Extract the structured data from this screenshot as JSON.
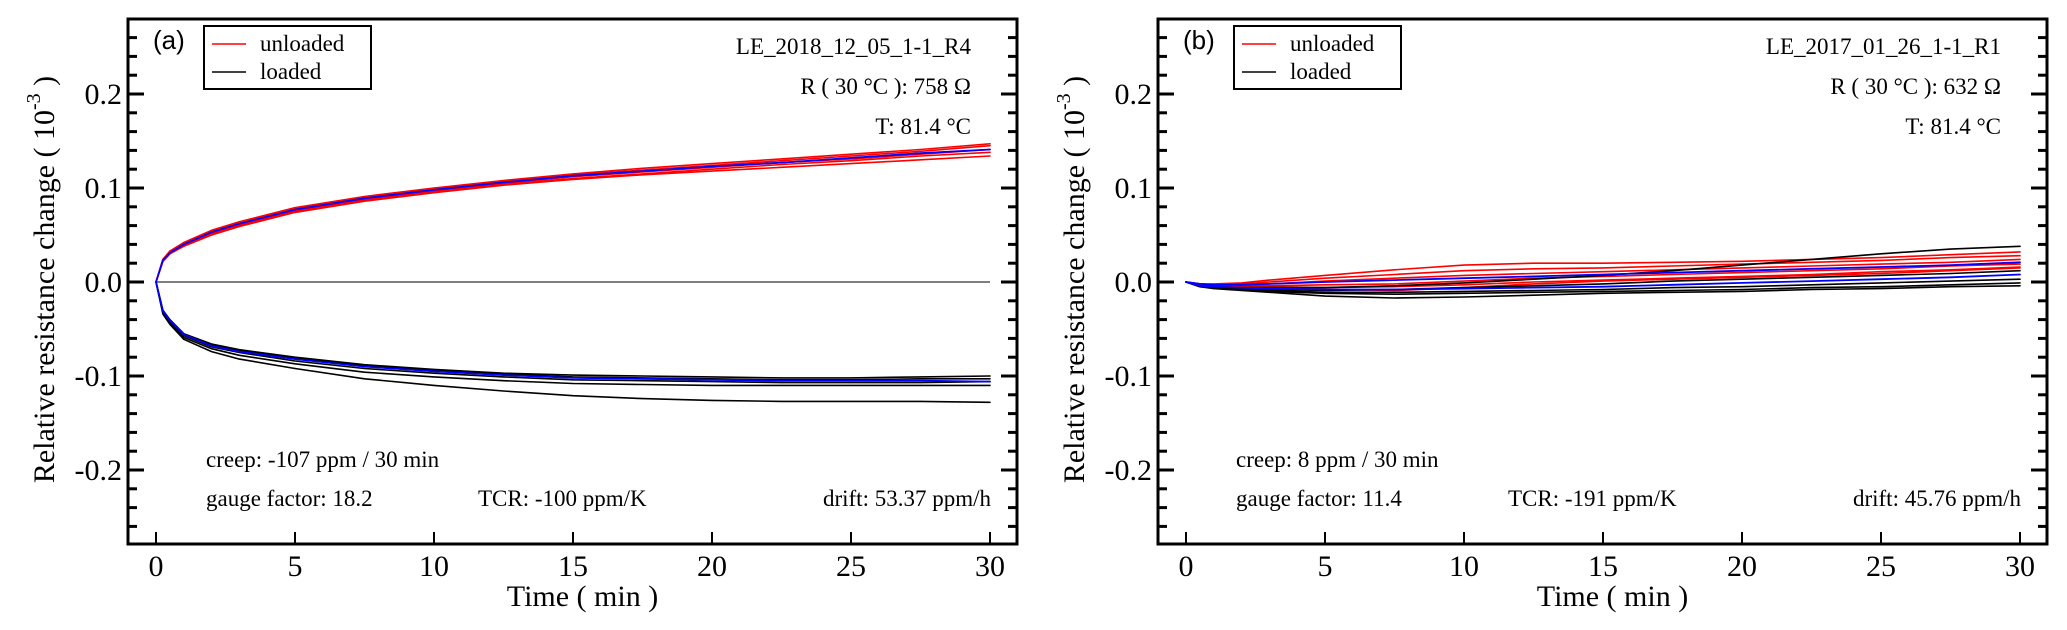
{
  "chart_data": [
    {
      "type": "line",
      "panel_label": "(a)",
      "sample_id": "LE_2018_12_05_1-1_R4",
      "resistance": "R ( 30 °C ): 758 Ω",
      "temperature": "T: 81.4 °C",
      "creep": "creep: -107 ppm / 30 min",
      "gauge_factor": "gauge factor: 18.2",
      "tcr": "TCR: -100 ppm/K",
      "drift": "drift: 53.37 ppm/h",
      "xlabel": "Time ( min )",
      "ylabel": "Relative  resistance change ( 10",
      "ylabel_exp": "-3",
      "ylabel_close": " )",
      "xlim": [
        -1,
        31
      ],
      "ylim": [
        -0.28,
        0.28
      ],
      "xticks": [
        0,
        5,
        10,
        15,
        20,
        25,
        30
      ],
      "xtick_labels": [
        "0",
        "5",
        "10",
        "15",
        "20",
        "25",
        "30"
      ],
      "yticks": [
        -0.2,
        -0.1,
        0.0,
        0.1,
        0.2
      ],
      "ytick_labels": [
        "-0.2",
        "-0.1",
        "0.0",
        "0.1",
        "0.2"
      ],
      "zero_line": true,
      "legend": {
        "position": "top-left",
        "entries": [
          {
            "label": "unloaded",
            "color": "#ff0000"
          },
          {
            "label": "loaded",
            "color": "#000000"
          }
        ]
      },
      "x": [
        0,
        0.25,
        0.5,
        1,
        2,
        3,
        5,
        7.5,
        10,
        12.5,
        15,
        17.5,
        20,
        22.5,
        25,
        27.5,
        30
      ],
      "series": [
        {
          "name": "unloaded",
          "color": "#ff0000",
          "values": [
            0,
            0.024,
            0.032,
            0.041,
            0.054,
            0.063,
            0.078,
            0.09,
            0.099,
            0.107,
            0.114,
            0.119,
            0.124,
            0.129,
            0.134,
            0.139,
            0.145
          ]
        },
        {
          "name": "unloaded",
          "color": "#ff0000",
          "values": [
            0,
            0.023,
            0.031,
            0.04,
            0.052,
            0.061,
            0.076,
            0.088,
            0.097,
            0.105,
            0.112,
            0.117,
            0.122,
            0.127,
            0.131,
            0.136,
            0.141
          ]
        },
        {
          "name": "unloaded",
          "color": "#ff0000",
          "values": [
            0,
            0.022,
            0.03,
            0.039,
            0.051,
            0.06,
            0.075,
            0.087,
            0.096,
            0.104,
            0.11,
            0.115,
            0.12,
            0.125,
            0.129,
            0.134,
            0.138
          ]
        },
        {
          "name": "unloaded",
          "color": "#ff0000",
          "values": [
            0,
            0.024,
            0.033,
            0.042,
            0.055,
            0.064,
            0.079,
            0.091,
            0.1,
            0.108,
            0.115,
            0.121,
            0.126,
            0.131,
            0.136,
            0.141,
            0.147
          ]
        },
        {
          "name": "unloaded",
          "color": "#ff0000",
          "values": [
            0,
            0.022,
            0.03,
            0.038,
            0.05,
            0.059,
            0.074,
            0.086,
            0.095,
            0.103,
            0.109,
            0.114,
            0.118,
            0.122,
            0.126,
            0.13,
            0.134
          ]
        },
        {
          "name": "unloaded fit",
          "color": "#0000ff",
          "values": [
            0,
            0.023,
            0.031,
            0.04,
            0.053,
            0.062,
            0.077,
            0.089,
            0.098,
            0.106,
            0.113,
            0.118,
            0.123,
            0.127,
            0.132,
            0.137,
            0.141
          ]
        },
        {
          "name": "loaded",
          "color": "#000000",
          "values": [
            0,
            -0.03,
            -0.04,
            -0.055,
            -0.066,
            -0.072,
            -0.08,
            -0.088,
            -0.093,
            -0.097,
            -0.099,
            -0.1,
            -0.101,
            -0.102,
            -0.102,
            -0.101,
            -0.1
          ]
        },
        {
          "name": "loaded",
          "color": "#000000",
          "values": [
            0,
            -0.031,
            -0.041,
            -0.056,
            -0.067,
            -0.073,
            -0.081,
            -0.089,
            -0.094,
            -0.098,
            -0.101,
            -0.102,
            -0.103,
            -0.104,
            -0.104,
            -0.103,
            -0.103
          ]
        },
        {
          "name": "loaded",
          "color": "#000000",
          "values": [
            0,
            -0.032,
            -0.042,
            -0.057,
            -0.069,
            -0.075,
            -0.084,
            -0.092,
            -0.097,
            -0.101,
            -0.104,
            -0.105,
            -0.106,
            -0.107,
            -0.107,
            -0.107,
            -0.106
          ]
        },
        {
          "name": "loaded",
          "color": "#000000",
          "values": [
            0,
            -0.033,
            -0.043,
            -0.059,
            -0.071,
            -0.078,
            -0.087,
            -0.096,
            -0.101,
            -0.105,
            -0.108,
            -0.109,
            -0.11,
            -0.11,
            -0.11,
            -0.11,
            -0.11
          ]
        },
        {
          "name": "loaded",
          "color": "#000000",
          "values": [
            0,
            -0.034,
            -0.045,
            -0.061,
            -0.074,
            -0.082,
            -0.092,
            -0.103,
            -0.11,
            -0.116,
            -0.121,
            -0.124,
            -0.126,
            -0.127,
            -0.127,
            -0.127,
            -0.128
          ]
        },
        {
          "name": "loaded fit",
          "color": "#0000ff",
          "values": [
            0,
            -0.031,
            -0.041,
            -0.056,
            -0.068,
            -0.074,
            -0.082,
            -0.09,
            -0.095,
            -0.099,
            -0.102,
            -0.103,
            -0.104,
            -0.105,
            -0.105,
            -0.105,
            -0.106
          ]
        }
      ]
    },
    {
      "type": "line",
      "panel_label": "(b)",
      "sample_id": "LE_2017_01_26_1-1_R1",
      "resistance": "R ( 30 °C ): 632 Ω",
      "temperature": "T: 81.4 °C",
      "creep": "creep: 8 ppm / 30 min",
      "gauge_factor": "gauge factor: 11.4",
      "tcr": "TCR: -191 ppm/K",
      "drift": "drift: 45.76 ppm/h",
      "xlabel": "Time ( min )",
      "ylabel": "Relative  resistance change ( 10",
      "ylabel_exp": "-3",
      "ylabel_close": " )",
      "xlim": [
        -1,
        31
      ],
      "ylim": [
        -0.28,
        0.28
      ],
      "xticks": [
        0,
        5,
        10,
        15,
        20,
        25,
        30
      ],
      "xtick_labels": [
        "0",
        "5",
        "10",
        "15",
        "20",
        "25",
        "30"
      ],
      "yticks": [
        -0.2,
        -0.1,
        0.0,
        0.1,
        0.2
      ],
      "ytick_labels": [
        "-0.2",
        "-0.1",
        "0.0",
        "0.1",
        "0.2"
      ],
      "zero_line": false,
      "legend": {
        "position": "top-left",
        "entries": [
          {
            "label": "unloaded",
            "color": "#ff0000"
          },
          {
            "label": "loaded",
            "color": "#000000"
          }
        ]
      },
      "x": [
        0,
        0.5,
        1,
        2,
        3,
        5,
        7.5,
        10,
        12.5,
        15,
        17.5,
        20,
        22.5,
        25,
        27.5,
        30
      ],
      "series": [
        {
          "name": "unloaded",
          "color": "#ff0000",
          "values": [
            0,
            -0.002,
            -0.002,
            -0.001,
            0.002,
            0.007,
            0.013,
            0.018,
            0.02,
            0.02,
            0.021,
            0.022,
            0.024,
            0.026,
            0.029,
            0.032
          ]
        },
        {
          "name": "unloaded",
          "color": "#ff0000",
          "values": [
            0,
            -0.002,
            -0.003,
            -0.002,
            0.0,
            0.004,
            0.008,
            0.012,
            0.014,
            0.015,
            0.017,
            0.019,
            0.021,
            0.023,
            0.026,
            0.028
          ]
        },
        {
          "name": "unloaded",
          "color": "#ff0000",
          "values": [
            0,
            -0.002,
            -0.003,
            -0.003,
            -0.002,
            0.001,
            0.004,
            0.007,
            0.009,
            0.011,
            0.013,
            0.015,
            0.017,
            0.019,
            0.021,
            0.024
          ]
        },
        {
          "name": "unloaded",
          "color": "#ff0000",
          "values": [
            0,
            -0.003,
            -0.004,
            -0.004,
            -0.004,
            -0.003,
            -0.002,
            0.001,
            0.004,
            0.006,
            0.008,
            0.01,
            0.012,
            0.014,
            0.017,
            0.019
          ]
        },
        {
          "name": "unloaded",
          "color": "#ff0000",
          "values": [
            0,
            -0.003,
            -0.004,
            -0.005,
            -0.006,
            -0.008,
            -0.009,
            -0.006,
            -0.002,
            0.001,
            0.003,
            0.005,
            0.007,
            0.009,
            0.012,
            0.015
          ]
        },
        {
          "name": "unloaded",
          "color": "#ff0000",
          "values": [
            0,
            -0.003,
            -0.004,
            -0.004,
            -0.005,
            -0.006,
            -0.005,
            -0.003,
            0.0,
            0.002,
            0.004,
            0.006,
            0.008,
            0.011,
            0.013,
            0.016
          ]
        },
        {
          "name": "unloaded fit",
          "color": "#0000ff",
          "values": [
            0,
            -0.002,
            -0.003,
            -0.003,
            -0.002,
            0.0,
            0.002,
            0.004,
            0.006,
            0.008,
            0.01,
            0.012,
            0.014,
            0.016,
            0.018,
            0.021
          ]
        },
        {
          "name": "loaded",
          "color": "#000000",
          "values": [
            0,
            -0.004,
            -0.005,
            -0.006,
            -0.006,
            -0.006,
            -0.004,
            -0.001,
            0.003,
            0.007,
            0.012,
            0.018,
            0.024,
            0.03,
            0.035,
            0.038
          ]
        },
        {
          "name": "loaded",
          "color": "#000000",
          "values": [
            0,
            -0.004,
            -0.005,
            -0.007,
            -0.008,
            -0.009,
            -0.008,
            -0.006,
            -0.004,
            -0.002,
            0.001,
            0.003,
            0.005,
            0.007,
            0.009,
            0.012
          ]
        },
        {
          "name": "loaded",
          "color": "#000000",
          "values": [
            0,
            -0.004,
            -0.006,
            -0.008,
            -0.009,
            -0.011,
            -0.011,
            -0.01,
            -0.009,
            -0.008,
            -0.006,
            -0.005,
            -0.003,
            -0.001,
            0.001,
            0.003
          ]
        },
        {
          "name": "loaded",
          "color": "#000000",
          "values": [
            0,
            -0.005,
            -0.006,
            -0.008,
            -0.01,
            -0.012,
            -0.013,
            -0.012,
            -0.011,
            -0.01,
            -0.009,
            -0.008,
            -0.006,
            -0.005,
            -0.003,
            -0.001
          ]
        },
        {
          "name": "loaded",
          "color": "#000000",
          "values": [
            0,
            -0.005,
            -0.007,
            -0.009,
            -0.011,
            -0.015,
            -0.017,
            -0.016,
            -0.014,
            -0.012,
            -0.011,
            -0.01,
            -0.008,
            -0.007,
            -0.005,
            -0.004
          ]
        },
        {
          "name": "loaded fit",
          "color": "#0000ff",
          "values": [
            0,
            -0.004,
            -0.005,
            -0.006,
            -0.007,
            -0.008,
            -0.008,
            -0.007,
            -0.006,
            -0.005,
            -0.003,
            -0.001,
            0.001,
            0.003,
            0.005,
            0.008
          ]
        }
      ]
    }
  ]
}
